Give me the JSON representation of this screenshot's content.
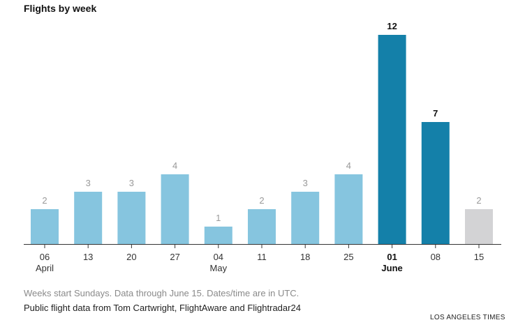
{
  "title": "Flights by week",
  "note": "Weeks start Sundays. Data through June 15. Dates/time are in UTC.",
  "source": "Public flight data from Tom Cartwright, FlightAware and Flightradar24",
  "credit": "LOS ANGELES TIMES",
  "colors": {
    "bar_light": "#86c5df",
    "bar_dark": "#1480a9",
    "bar_gray": "#d3d3d5",
    "label_light": "#999999",
    "label_dark": "#111111",
    "axis": "#333333"
  },
  "chart_data": {
    "type": "bar",
    "title": "Flights by week",
    "xlabel": "",
    "ylabel": "",
    "ylim": [
      0,
      12
    ],
    "grid": false,
    "categories": [
      "06",
      "13",
      "20",
      "27",
      "04",
      "11",
      "18",
      "25",
      "01",
      "08",
      "15"
    ],
    "month_labels": [
      "April",
      "",
      "",
      "",
      "May",
      "",
      "",
      "",
      "June",
      "",
      ""
    ],
    "values": [
      2,
      3,
      3,
      4,
      1,
      2,
      3,
      4,
      12,
      7,
      2
    ],
    "bar_styles": [
      "light",
      "light",
      "light",
      "light",
      "light",
      "light",
      "light",
      "light",
      "dark",
      "dark",
      "gray"
    ],
    "bold_ticks": [
      false,
      false,
      false,
      false,
      false,
      false,
      false,
      false,
      true,
      false,
      false
    ]
  }
}
